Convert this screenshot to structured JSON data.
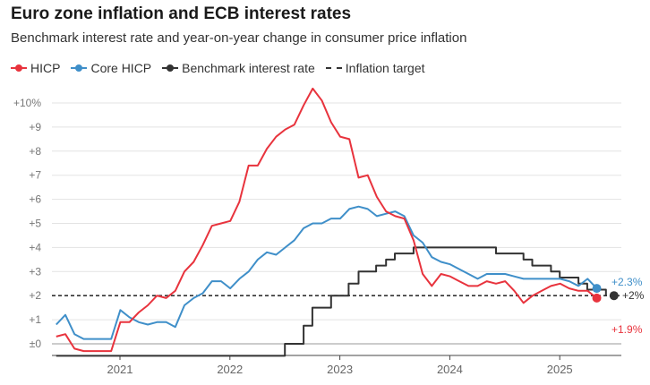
{
  "chart_data": {
    "type": "line",
    "title": "Euro zone inflation and ECB interest rates",
    "subtitle": "Benchmark interest rate and year-on-year change in consumer price inflation",
    "xlabel": "",
    "ylabel": "",
    "x_range": [
      2020.42,
      2025.42
    ],
    "ylim": [
      -0.5,
      10.9
    ],
    "y_ticks": [
      0,
      1,
      2,
      3,
      4,
      5,
      6,
      7,
      8,
      9,
      10
    ],
    "y_tick_labels": [
      "±0",
      "+1",
      "+2",
      "+3",
      "+4",
      "+5",
      "+6",
      "+7",
      "+8",
      "+9",
      "+10%"
    ],
    "x_ticks": [
      2021,
      2022,
      2023,
      2024,
      2025
    ],
    "x_tick_labels": [
      "2021",
      "2022",
      "2023",
      "2024",
      "2025"
    ],
    "legend": [
      {
        "key": "hicp",
        "label": "HICP",
        "style": "line-dot",
        "color": "#e8333d"
      },
      {
        "key": "core",
        "label": "Core HICP",
        "style": "line-dot",
        "color": "#3f8fc9"
      },
      {
        "key": "rate",
        "label": "Benchmark interest rate",
        "style": "line-dot",
        "color": "#333333"
      },
      {
        "key": "target",
        "label": "Inflation target",
        "style": "dashed",
        "color": "#333333"
      }
    ],
    "inflation_target": 2,
    "series": [
      {
        "key": "hicp",
        "name": "HICP",
        "color": "#e8333d",
        "start": 2020.42,
        "step_months": 1,
        "values": [
          0.3,
          0.4,
          -0.2,
          -0.3,
          -0.3,
          -0.3,
          -0.3,
          0.9,
          0.9,
          1.3,
          1.6,
          2.0,
          1.9,
          2.2,
          3.0,
          3.4,
          4.1,
          4.9,
          5.0,
          5.1,
          5.9,
          7.4,
          7.4,
          8.1,
          8.6,
          8.9,
          9.1,
          9.9,
          10.6,
          10.1,
          9.2,
          8.6,
          8.5,
          6.9,
          7.0,
          6.1,
          5.5,
          5.3,
          5.2,
          4.3,
          2.9,
          2.4,
          2.9,
          2.8,
          2.6,
          2.4,
          2.4,
          2.6,
          2.5,
          2.6,
          2.2,
          1.7,
          2.0,
          2.2,
          2.4,
          2.5,
          2.3,
          2.2,
          2.2,
          1.9
        ],
        "end_label": "+1.9%"
      },
      {
        "key": "core",
        "name": "Core HICP",
        "color": "#3f8fc9",
        "start": 2020.42,
        "step_months": 1,
        "values": [
          0.8,
          1.2,
          0.4,
          0.2,
          0.2,
          0.2,
          0.2,
          1.4,
          1.1,
          0.9,
          0.8,
          0.9,
          0.9,
          0.7,
          1.6,
          1.9,
          2.1,
          2.6,
          2.6,
          2.3,
          2.7,
          3.0,
          3.5,
          3.8,
          3.7,
          4.0,
          4.3,
          4.8,
          5.0,
          5.0,
          5.2,
          5.2,
          5.6,
          5.7,
          5.6,
          5.3,
          5.4,
          5.5,
          5.3,
          4.5,
          4.2,
          3.6,
          3.4,
          3.3,
          3.1,
          2.9,
          2.7,
          2.9,
          2.9,
          2.9,
          2.8,
          2.7,
          2.7,
          2.7,
          2.7,
          2.7,
          2.6,
          2.4,
          2.7,
          2.3
        ],
        "end_label": "+2.3%"
      },
      {
        "key": "rate",
        "name": "Benchmark interest rate",
        "color": "#333333",
        "type": "step",
        "points": [
          [
            2020.42,
            -0.5
          ],
          [
            2022.5,
            0.0
          ],
          [
            2022.67,
            0.75
          ],
          [
            2022.75,
            1.5
          ],
          [
            2022.92,
            2.0
          ],
          [
            2023.08,
            2.5
          ],
          [
            2023.17,
            3.0
          ],
          [
            2023.33,
            3.25
          ],
          [
            2023.42,
            3.5
          ],
          [
            2023.5,
            3.75
          ],
          [
            2023.67,
            4.0
          ],
          [
            2024.42,
            3.75
          ],
          [
            2024.67,
            3.5
          ],
          [
            2024.75,
            3.25
          ],
          [
            2024.92,
            3.0
          ],
          [
            2025.0,
            2.75
          ],
          [
            2025.17,
            2.5
          ],
          [
            2025.25,
            2.25
          ],
          [
            2025.42,
            2.0
          ]
        ],
        "end_label": "+2%"
      }
    ]
  }
}
